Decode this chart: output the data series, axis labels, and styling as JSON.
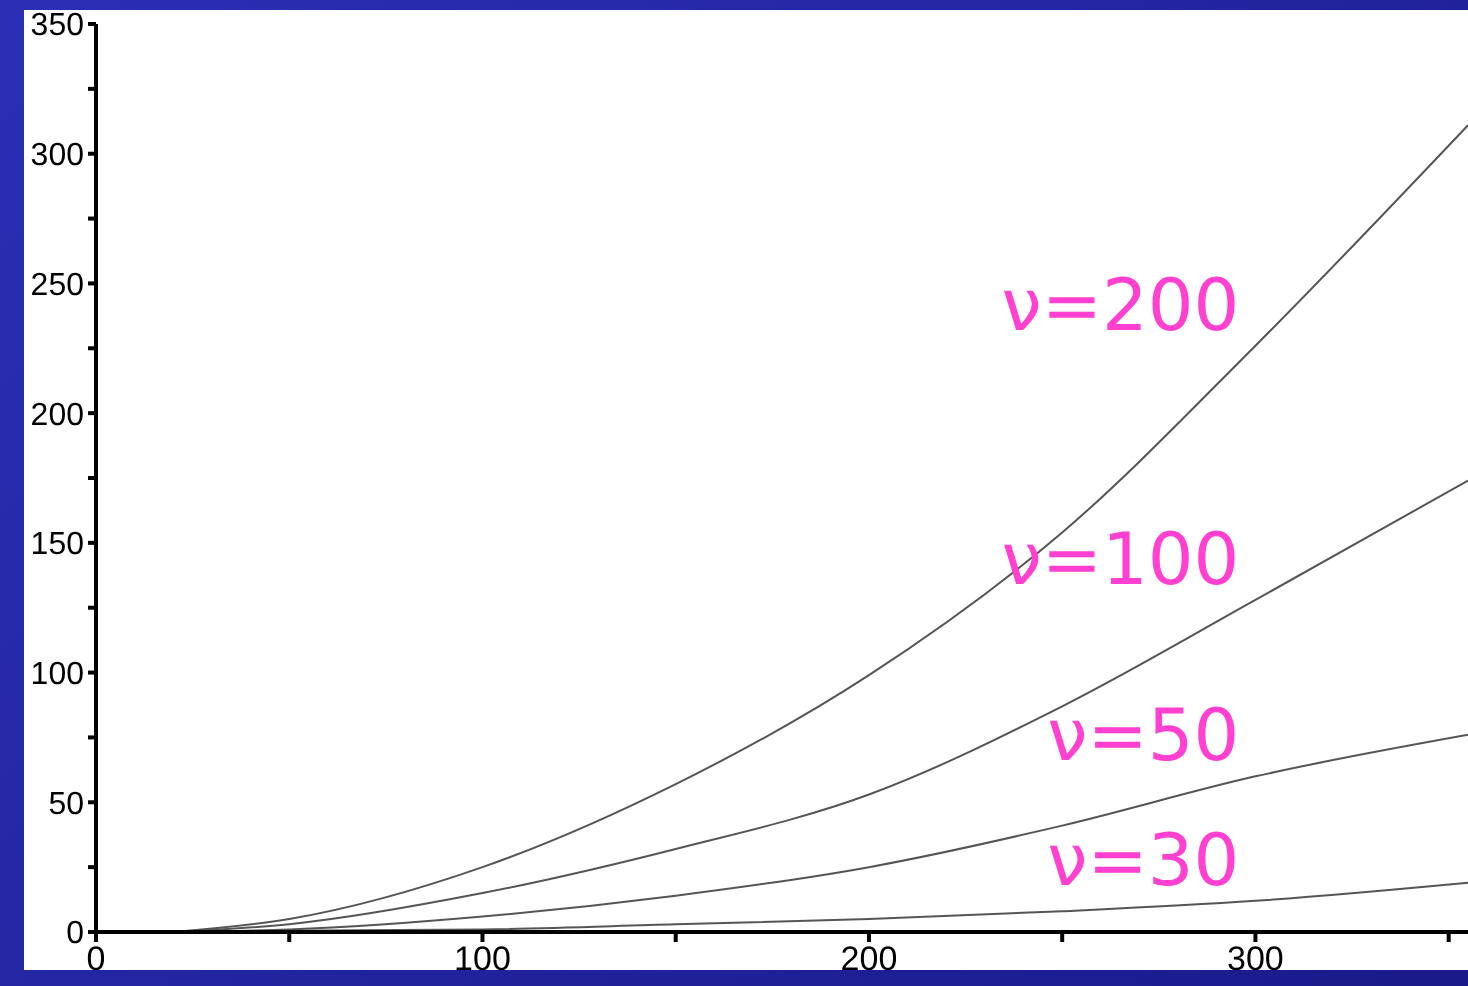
{
  "chart_data": {
    "type": "line",
    "xlim": [
      0,
      355
    ],
    "ylim": [
      0,
      350
    ],
    "xticks": [
      0,
      {
        "value": 50,
        "label": null
      },
      100,
      {
        "value": 150,
        "label": null
      },
      200,
      {
        "value": 250,
        "label": null
      },
      300,
      {
        "value": 350,
        "label": null
      }
    ],
    "yticks": [
      0,
      {
        "value": 25,
        "label": null
      },
      50,
      {
        "value": 75,
        "label": null
      },
      100,
      {
        "value": 125,
        "label": null
      },
      150,
      {
        "value": 175,
        "label": null
      },
      200,
      {
        "value": 225,
        "label": null
      },
      250,
      {
        "value": 275,
        "label": null
      },
      300,
      {
        "value": 325,
        "label": null
      },
      350
    ],
    "grid": false,
    "marker": "none",
    "line_style": "solid",
    "series": [
      {
        "name": "ν=200",
        "color": "#555555",
        "x": [
          20,
          50,
          100,
          150,
          200,
          250,
          300,
          355
        ],
        "values": [
          0,
          5,
          25,
          57,
          99,
          154,
          226,
          311
        ]
      },
      {
        "name": "ν=100",
        "color": "#555555",
        "x": [
          20,
          50,
          100,
          150,
          200,
          250,
          300,
          355
        ],
        "values": [
          0,
          3,
          15,
          32,
          53,
          87,
          128,
          174
        ]
      },
      {
        "name": "ν=50",
        "color": "#555555",
        "x": [
          20,
          50,
          100,
          150,
          200,
          250,
          300,
          355
        ],
        "values": [
          0,
          1,
          6,
          14,
          25,
          41,
          60,
          76
        ]
      },
      {
        "name": "ν=30",
        "color": "#555555",
        "x": [
          20,
          50,
          100,
          150,
          200,
          250,
          300,
          355
        ],
        "values": [
          0,
          0.5,
          1,
          3,
          5,
          8,
          12,
          19
        ]
      }
    ]
  }
}
